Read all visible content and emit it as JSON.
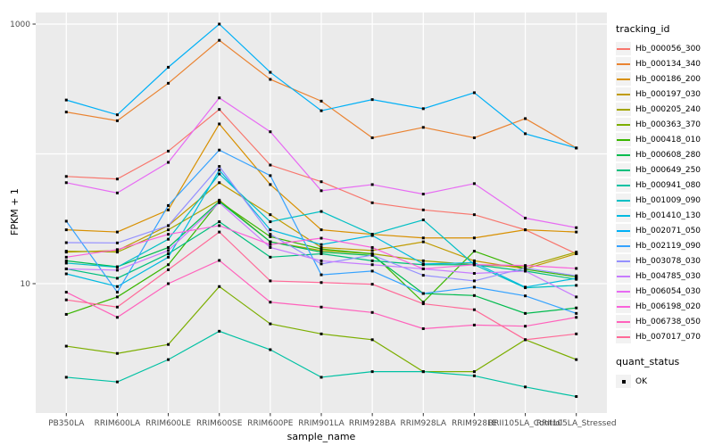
{
  "chart_data": {
    "type": "line",
    "title": "",
    "xlabel": "sample_name",
    "ylabel": "FPKM + 1",
    "y_scale": "log10",
    "ylim": [
      1,
      1230
    ],
    "grid": "on",
    "legend_position": "right",
    "legend_title": "tracking_id",
    "marker_legend": {
      "title": "quant_status",
      "label": "OK"
    },
    "y_ticks": [
      {
        "label": "10",
        "value": 10
      },
      {
        "label": "1000",
        "value": 1000
      }
    ],
    "gridline_values": [
      1,
      10,
      100,
      1000
    ],
    "categories": [
      "PB350LA",
      "RRIM600LA",
      "RRIM600LE",
      "RRIM600SE",
      "RRIM600PE",
      "RRIM901LA",
      "RRIM928BA",
      "RRIM928LA",
      "RRIM928LE",
      "RRII105LA_Control",
      "RRII105LA_Stressed"
    ],
    "series": [
      {
        "name": "Hb_000056_300",
        "color": "#F8766D",
        "values": [
          67,
          64,
          105,
          220,
          82,
          61,
          42,
          37,
          34,
          26,
          17
        ]
      },
      {
        "name": "Hb_000134_340",
        "color": "#EA8331",
        "values": [
          210,
          180,
          350,
          750,
          375,
          255,
          133,
          160,
          133,
          187,
          111
        ]
      },
      {
        "name": "Hb_000186_200",
        "color": "#D89000",
        "values": [
          26,
          25,
          37,
          170,
          58,
          26,
          24,
          22.5,
          22.5,
          26,
          25
        ]
      },
      {
        "name": "Hb_000197_030",
        "color": "#C09B00",
        "values": [
          17.5,
          18,
          28,
          60,
          34,
          19,
          18,
          21,
          15,
          13,
          17
        ]
      },
      {
        "name": "Hb_000205_240",
        "color": "#A3A500",
        "values": [
          17.8,
          17.5,
          26,
          44,
          21,
          18,
          17,
          15,
          14,
          13.5,
          17.5
        ]
      },
      {
        "name": "Hb_000363_370",
        "color": "#7CAE00",
        "values": [
          3.3,
          2.9,
          3.4,
          9.5,
          4.9,
          4.1,
          3.7,
          2.1,
          2.1,
          3.7,
          2.6
        ]
      },
      {
        "name": "Hb_000418_010",
        "color": "#39B600",
        "values": [
          5.8,
          7.9,
          14,
          43,
          23,
          18.5,
          17,
          7.2,
          17.8,
          12.9,
          11.3
        ]
      },
      {
        "name": "Hb_000608_280",
        "color": "#00BB4E",
        "values": [
          15,
          13.5,
          19,
          43,
          21,
          17.5,
          16.5,
          8.4,
          8.1,
          5.9,
          6.5
        ]
      },
      {
        "name": "Hb_000649_250",
        "color": "#00BF7D",
        "values": [
          13,
          11,
          17,
          30,
          16,
          17,
          15,
          14,
          14,
          12.5,
          10.8
        ]
      },
      {
        "name": "Hb_000941_080",
        "color": "#00C1A3",
        "values": [
          1.9,
          1.75,
          2.6,
          4.3,
          3.1,
          1.9,
          2.1,
          2.1,
          1.95,
          1.6,
          1.35
        ]
      },
      {
        "name": "Hb_001009_090",
        "color": "#00BFC4",
        "values": [
          14.4,
          13.4,
          22,
          70,
          30,
          36,
          24,
          31,
          14,
          9.3,
          9.7
        ]
      },
      {
        "name": "Hb_001410_130",
        "color": "#00BAE0",
        "values": [
          11.9,
          9.5,
          16,
          75,
          26,
          20,
          23.5,
          14.2,
          14.5,
          9.4,
          11
        ]
      },
      {
        "name": "Hb_002071_050",
        "color": "#00B0F6",
        "values": [
          260,
          200,
          465,
          1000,
          425,
          215,
          262,
          223,
          296,
          143,
          111
        ]
      },
      {
        "name": "Hb_002119_090",
        "color": "#35A2FF",
        "values": [
          30.3,
          8.6,
          40,
          107,
          68,
          11.7,
          12.5,
          8.4,
          9.4,
          8.05,
          5.9
        ]
      },
      {
        "name": "Hb_003078_030",
        "color": "#9590FF",
        "values": [
          20.7,
          20.6,
          28,
          80,
          24,
          14.2,
          16.6,
          11.6,
          10.5,
          13.2,
          11.5
        ]
      },
      {
        "name": "Hb_004785_030",
        "color": "#C77CFF",
        "values": [
          13,
          12.7,
          18,
          42,
          19,
          15,
          14,
          13,
          12,
          12.5,
          7.9
        ]
      },
      {
        "name": "Hb_006054_030",
        "color": "#E76BF3",
        "values": [
          60,
          50,
          86,
          270,
          148,
          52,
          58,
          49,
          59,
          32,
          27
        ]
      },
      {
        "name": "Hb_006198_020",
        "color": "#FA62DB",
        "values": [
          16,
          18.3,
          24,
          28,
          20,
          22.4,
          19,
          13,
          14,
          13.8,
          13.1
        ]
      },
      {
        "name": "Hb_006738_050",
        "color": "#FF62BC",
        "values": [
          8.6,
          5.5,
          10,
          15.1,
          7.2,
          6.6,
          6,
          4.5,
          4.8,
          4.7,
          5.5
        ]
      },
      {
        "name": "Hb_007017_070",
        "color": "#FF6A98",
        "values": [
          7.5,
          6.6,
          12.8,
          25,
          10.5,
          10.2,
          9.9,
          7,
          6.3,
          3.7,
          4.1
        ]
      }
    ]
  },
  "style": {
    "panel_bg": "#EBEBEB",
    "grid_color": "#FFFFFF",
    "marker_color": "#000000",
    "axis_text_color": "#4D4D4D",
    "tick_color": "#333333",
    "key_bg": "#F2F2F2"
  }
}
